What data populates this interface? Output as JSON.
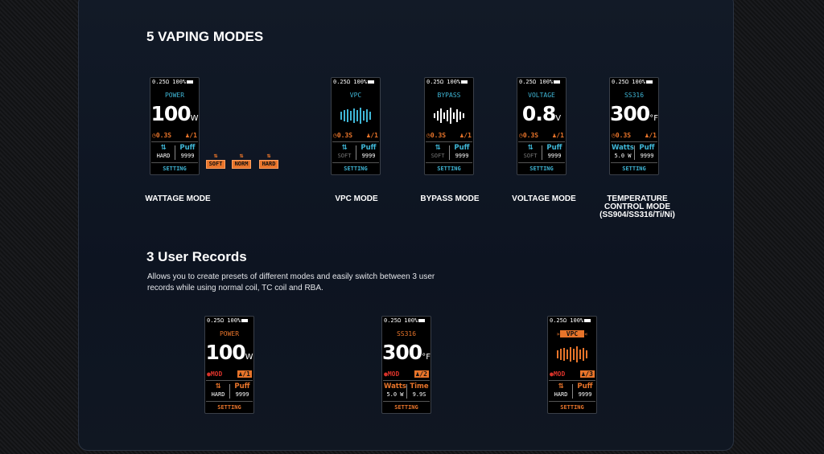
{
  "section1": {
    "title": "5 VAPING MODES"
  },
  "section2": {
    "title": "3 User Records",
    "description": "Allows you to create presets of different modes and easily switch between 3 user records while using normal coil, TC coil and RBA."
  },
  "colors": {
    "cyan": "#3fb6d6",
    "orange": "#e8742a",
    "red": "#d8322a"
  },
  "mode_labels": [
    "WATTAGE MODE",
    "VPC MODE",
    "BYPASS MODE",
    "VOLTAGE MODE",
    "TEMPERATURE CONTROL MODE (SS904/SS316/Ti/Ni)"
  ],
  "soft_tags": [
    {
      "icon": "up-down-arrows",
      "label": "SOFT"
    },
    {
      "icon": "up-down-arrows",
      "label": "NORM"
    },
    {
      "icon": "up-down-arrows",
      "label": "HARD"
    }
  ],
  "screens": [
    {
      "accent": "cyan",
      "status": "0.25Ω 100%",
      "title": "POWER",
      "value": "100",
      "unit": "W",
      "time": "0.3S",
      "user": "/1",
      "left_head": "⇅",
      "left_val": "HARD",
      "right_head": "Puff",
      "right_val": "9999",
      "setting": "SETTING"
    },
    {
      "accent": "cyan",
      "status": "0.25Ω 100%",
      "title": "VPC",
      "graph": "vpc",
      "time": "0.3S",
      "user": "/1",
      "left_head": "⇅",
      "left_val": "SOFT",
      "right_head": "Puff",
      "right_val": "9999",
      "setting": "SETTING"
    },
    {
      "accent": "cyan",
      "status": "0.25Ω 100%",
      "title": "BYPASS",
      "graph": "bypass",
      "time": "0.3S",
      "user": "/1",
      "left_head": "⇅",
      "left_val": "SOFT",
      "right_head": "Puff",
      "right_val": "9999",
      "setting": "SETTING"
    },
    {
      "accent": "cyan",
      "status": "0.25Ω 100%",
      "title": "VOLTAGE",
      "value": "0.8",
      "unit": "V",
      "time": "0.3S",
      "user": "/1",
      "left_head": "⇅",
      "left_val": "SOFT",
      "right_head": "Puff",
      "right_val": "9999",
      "setting": "SETTING"
    },
    {
      "accent": "cyan",
      "status": "0.25Ω 100%",
      "title": "SS316",
      "value": "300",
      "unit": "°F",
      "time": "0.3S",
      "user": "/1",
      "left_head": "Watts",
      "left_val": "5.0 W",
      "right_head": "Puff",
      "right_val": "9999",
      "setting": "SETTING"
    },
    {
      "accent": "orange",
      "status": "0.25Ω 100%",
      "title": "POWER",
      "value": "100",
      "unit": "W",
      "mod": "MOD",
      "user": "/1",
      "left_head": "⇅",
      "left_val": "HARD",
      "right_head": "Puff",
      "right_val": "9999",
      "setting": "SETTING"
    },
    {
      "accent": "orange",
      "status": "0.25Ω 100%",
      "title": "SS316",
      "value": "300",
      "unit": "°F",
      "mod": "MOD",
      "user": "/2",
      "left_head": "Watts",
      "left_val": "5.0 W",
      "right_head": "Time",
      "right_val": "9.9S",
      "setting": "SETTING"
    },
    {
      "accent": "orange",
      "status": "0.25Ω 100%",
      "title": "VPC",
      "title_boxed": true,
      "graph": "vpc",
      "mod": "MOD",
      "user": "/3",
      "left_head": "⇅",
      "left_val": "HARD",
      "right_head": "Puff",
      "right_val": "9999",
      "setting": "SETTING"
    }
  ]
}
